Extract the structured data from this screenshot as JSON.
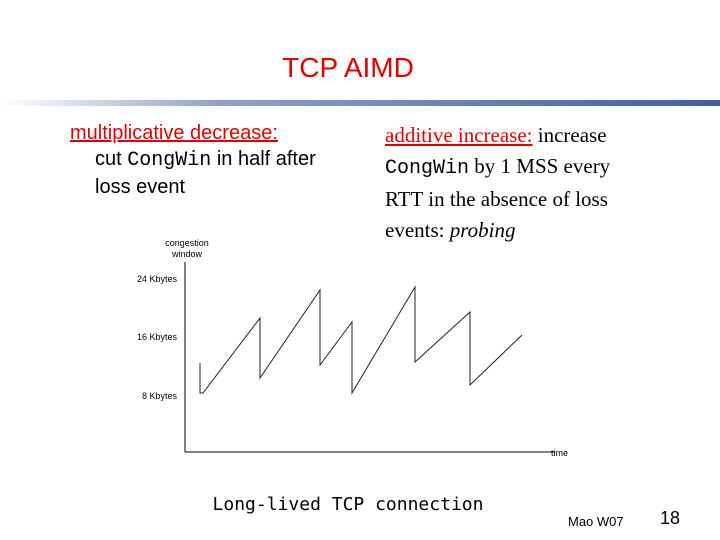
{
  "title": "TCP AIMD",
  "left": {
    "heading": "multiplicative decrease:",
    "lines": [
      [
        "cut ",
        "CongWin",
        " in half after"
      ],
      [
        "loss event"
      ]
    ]
  },
  "right": {
    "heading": "additive increase:",
    "lines": [
      [
        " increase"
      ],
      [
        "CongWin",
        " by 1 MSS every"
      ],
      [
        "RTT in the absence of loss"
      ],
      [
        "events: ",
        "probing"
      ]
    ]
  },
  "figure": {
    "y_label": "congestion window",
    "y_ticks": [
      "24 Kbytes",
      "16 Kbytes",
      "8 Kbytes"
    ],
    "x_label": "time"
  },
  "caption": "Long-lived TCP connection",
  "footer": {
    "author": "Mao W07",
    "page": "18"
  }
}
